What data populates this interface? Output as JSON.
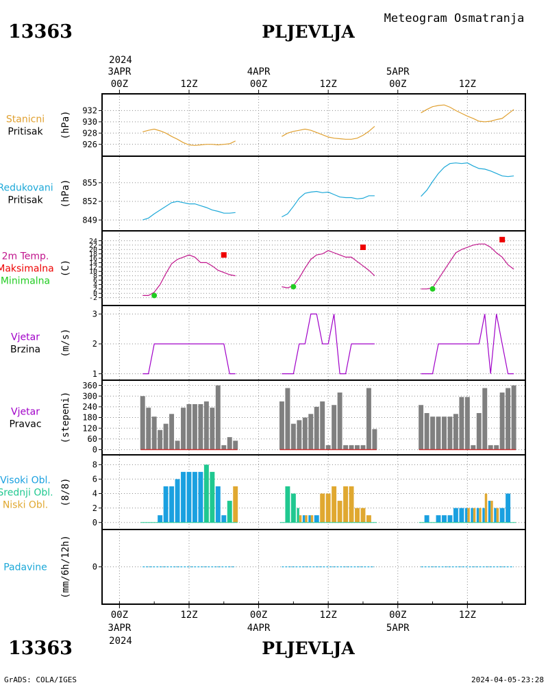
{
  "header": {
    "station_id": "13363",
    "station_name": "PLJEVLJA",
    "title": "Meteogram Osmatranja",
    "footer_left": "GrADS: COLA/IGES",
    "footer_right": "2024-04-05-23:28"
  },
  "time_axis": {
    "top_year": "2024",
    "bottom_year": "2024",
    "labels": [
      {
        "date": "3APR",
        "hour": "00Z",
        "t": 0
      },
      {
        "date": "",
        "hour": "12Z",
        "t": 12
      },
      {
        "date": "4APR",
        "hour": "00Z",
        "t": 24
      },
      {
        "date": "",
        "hour": "12Z",
        "t": 36
      },
      {
        "date": "5APR",
        "hour": "00Z",
        "t": 48
      },
      {
        "date": "",
        "hour": "12Z",
        "t": 60
      }
    ],
    "range": [
      -3,
      70
    ]
  },
  "colors": {
    "pressure": "#e0a030",
    "reduced": "#1ca8d8",
    "temperature": "#c0148c",
    "max": "#ee0000",
    "min": "#22cc22",
    "wind": "#a000c8",
    "direction": "#808080",
    "high_cloud": "#1aa0e0",
    "mid_cloud": "#20c890",
    "low_cloud": "#e0a830",
    "precip": "#1ca8d8"
  },
  "chart_data": [
    {
      "type": "line",
      "panel": "station_pressure",
      "label_lines": [
        "Stanicni",
        "Pritisak"
      ],
      "unit": "(hPa)",
      "ylim": [
        924.5,
        934
      ],
      "yticks": [
        926,
        928,
        930,
        932
      ],
      "series": [
        {
          "x": [
            4,
            5,
            6,
            7,
            8,
            9,
            10,
            11,
            12,
            13,
            14,
            15,
            16,
            17,
            18,
            19,
            20
          ],
          "y": [
            928.2,
            928.5,
            928.7,
            928.4,
            928.0,
            927.4,
            926.9,
            926.3,
            925.9,
            925.8,
            925.9,
            926.0,
            926.0,
            925.9,
            926.0,
            926.1,
            926.6
          ]
        },
        {
          "x": [
            28,
            29,
            30,
            31,
            32,
            33,
            34,
            35,
            36,
            37,
            38,
            39,
            40,
            41,
            42,
            43,
            44
          ],
          "y": [
            927.4,
            928.0,
            928.3,
            928.5,
            928.7,
            928.5,
            928.1,
            927.7,
            927.3,
            927.1,
            927.0,
            926.9,
            926.9,
            927.1,
            927.6,
            928.3,
            929.2
          ]
        },
        {
          "x": [
            52,
            53,
            54,
            55,
            56,
            57,
            58,
            59,
            60,
            61,
            62,
            63,
            64,
            65,
            66,
            67,
            68
          ],
          "y": [
            931.6,
            932.2,
            932.7,
            932.9,
            933.0,
            932.6,
            932.0,
            931.5,
            931.0,
            930.6,
            930.1,
            930.0,
            930.1,
            930.4,
            930.6,
            931.4,
            932.2
          ]
        }
      ]
    },
    {
      "type": "line",
      "panel": "reduced_pressure",
      "label_lines": [
        "Redukovani",
        "Pritisak"
      ],
      "unit": "(hPa)",
      "ylim": [
        847.8,
        858.4
      ],
      "yticks": [
        849,
        852,
        855
      ],
      "series": [
        {
          "x": [
            4,
            5,
            6,
            7,
            8,
            9,
            10,
            11,
            12,
            13,
            14,
            15,
            16,
            17,
            18,
            19,
            20
          ],
          "y": [
            849.0,
            849.3,
            850.0,
            850.6,
            851.2,
            851.8,
            852.0,
            851.8,
            851.6,
            851.6,
            851.3,
            851.0,
            850.6,
            850.4,
            850.1,
            850.1,
            850.2
          ]
        },
        {
          "x": [
            28,
            29,
            30,
            31,
            32,
            33,
            34,
            35,
            36,
            37,
            38,
            39,
            40,
            41,
            42,
            43,
            44
          ],
          "y": [
            849.5,
            850.0,
            851.2,
            852.5,
            853.3,
            853.5,
            853.6,
            853.4,
            853.5,
            853.1,
            852.7,
            852.6,
            852.6,
            852.4,
            852.5,
            852.9,
            852.9
          ]
        },
        {
          "x": [
            52,
            53,
            54,
            55,
            56,
            57,
            58,
            59,
            60,
            61,
            62,
            63,
            64,
            65,
            66,
            67,
            68
          ],
          "y": [
            852.8,
            853.8,
            855.2,
            856.5,
            857.5,
            858.1,
            858.2,
            858.1,
            858.2,
            857.7,
            857.3,
            857.2,
            856.9,
            856.5,
            856.1,
            856.0,
            856.1
          ]
        }
      ]
    },
    {
      "type": "line",
      "panel": "temperature",
      "label_lines": [
        "2m Temp.",
        "Maksimalna",
        "Minimalna"
      ],
      "unit": "(C)",
      "ylim": [
        -4,
        26
      ],
      "yticks": [
        -2,
        0,
        2,
        4,
        6,
        8,
        10,
        12,
        14,
        16,
        18,
        20,
        22,
        24
      ],
      "series": [
        {
          "x": [
            4,
            5,
            6,
            7,
            8,
            9,
            10,
            11,
            12,
            13,
            14,
            15,
            16,
            17,
            18,
            19,
            20
          ],
          "y": [
            -1.0,
            -1.0,
            0.5,
            4.0,
            9.0,
            13.5,
            15.5,
            16.5,
            17.5,
            16.5,
            14.0,
            14.0,
            12.5,
            10.5,
            9.5,
            8.5,
            8.0
          ]
        },
        {
          "x": [
            28,
            29,
            30,
            31,
            32,
            33,
            34,
            35,
            36,
            37,
            38,
            39,
            40,
            41,
            42,
            43,
            44
          ],
          "y": [
            3.0,
            2.5,
            3.5,
            7.0,
            11.5,
            15.5,
            17.5,
            18.0,
            19.5,
            18.5,
            17.5,
            16.5,
            16.5,
            14.5,
            12.5,
            10.5,
            8.0
          ]
        },
        {
          "x": [
            52,
            53,
            54,
            55,
            56,
            57,
            58,
            59,
            60,
            61,
            62,
            63,
            64,
            65,
            66,
            67,
            68
          ],
          "y": [
            2.0,
            2.0,
            2.5,
            6.5,
            10.5,
            14.5,
            18.5,
            20.0,
            21.0,
            22.0,
            22.5,
            22.5,
            21.0,
            18.5,
            16.5,
            13.0,
            11.0
          ]
        }
      ],
      "max_points": {
        "x": [
          18,
          42,
          66
        ],
        "y": [
          17.5,
          21.0,
          24.5
        ]
      },
      "min_points": {
        "x": [
          6,
          30,
          54
        ],
        "y": [
          -1.0,
          3.0,
          2.0
        ]
      }
    },
    {
      "type": "line",
      "panel": "wind_speed",
      "label_lines": [
        "Vjetar",
        "Brzina"
      ],
      "unit": "(m/s)",
      "ylim": [
        0.9,
        3.1
      ],
      "yticks": [
        1,
        2,
        3
      ],
      "series": [
        {
          "x": [
            4,
            5,
            6,
            7,
            8,
            9,
            10,
            11,
            12,
            13,
            14,
            15,
            16,
            17,
            18,
            19,
            20
          ],
          "y": [
            1,
            1,
            2,
            2,
            2,
            2,
            2,
            2,
            2,
            2,
            2,
            2,
            2,
            2,
            2,
            1,
            1
          ]
        },
        {
          "x": [
            28,
            29,
            30,
            31,
            32,
            33,
            34,
            35,
            36,
            37,
            38,
            39,
            40,
            41,
            42,
            43,
            44
          ],
          "y": [
            1,
            1,
            1,
            2,
            2,
            3,
            3,
            2,
            2,
            3,
            1,
            1,
            2,
            2,
            2,
            2,
            2
          ]
        },
        {
          "x": [
            52,
            53,
            54,
            55,
            56,
            57,
            58,
            59,
            60,
            61,
            62,
            63,
            64,
            65,
            66,
            67,
            68
          ],
          "y": [
            1,
            1,
            1,
            2,
            2,
            2,
            2,
            2,
            2,
            2,
            2,
            3,
            1,
            3,
            2,
            1,
            1
          ]
        }
      ]
    },
    {
      "type": "bar",
      "panel": "wind_direction",
      "label_lines": [
        "Vjetar",
        "Pravac"
      ],
      "unit": "(stepeni)",
      "ylim": [
        -10,
        370
      ],
      "yticks": [
        0,
        60,
        120,
        180,
        240,
        300,
        360
      ],
      "x": [
        4,
        5,
        6,
        7,
        8,
        9,
        10,
        11,
        12,
        13,
        14,
        15,
        16,
        17,
        18,
        19,
        20,
        28,
        29,
        30,
        31,
        32,
        33,
        34,
        35,
        36,
        37,
        38,
        39,
        40,
        41,
        42,
        43,
        44,
        52,
        53,
        54,
        55,
        56,
        57,
        58,
        59,
        60,
        61,
        62,
        63,
        64,
        65,
        66,
        67,
        68
      ],
      "values": [
        300,
        235,
        185,
        110,
        145,
        200,
        50,
        235,
        255,
        255,
        255,
        270,
        235,
        360,
        25,
        70,
        50,
        270,
        345,
        145,
        165,
        180,
        200,
        240,
        270,
        25,
        250,
        320,
        25,
        25,
        25,
        25,
        345,
        115,
        250,
        205,
        185,
        185,
        185,
        185,
        200,
        295,
        295,
        25,
        205,
        345,
        25,
        25,
        320,
        345,
        360
      ]
    },
    {
      "type": "bar",
      "panel": "cloud_cover",
      "label_lines": [
        "Visoki Obl.",
        "Srednji Obl.",
        "Niski Obl."
      ],
      "unit": "(8/8)",
      "ylim": [
        -0.5,
        8.6
      ],
      "yticks": [
        0,
        2,
        4,
        6,
        8
      ],
      "x": [
        4,
        5,
        6,
        7,
        8,
        9,
        10,
        11,
        12,
        13,
        14,
        15,
        16,
        17,
        18,
        19,
        20,
        28,
        29,
        30,
        31,
        32,
        33,
        34,
        35,
        36,
        37,
        38,
        39,
        40,
        41,
        42,
        43,
        44,
        52,
        53,
        54,
        55,
        56,
        57,
        58,
        59,
        60,
        61,
        62,
        63,
        64,
        65,
        66,
        67,
        68
      ],
      "series": [
        {
          "name": "Visoki Obl.",
          "values": [
            0,
            0,
            0,
            1,
            5,
            5,
            6,
            7,
            7,
            7,
            7,
            0,
            0,
            5,
            1,
            0,
            0,
            0,
            0,
            0,
            0,
            1,
            1,
            1,
            0,
            0,
            0,
            0,
            0,
            0,
            0,
            0,
            0,
            0,
            0,
            1,
            0,
            1,
            1,
            1,
            2,
            2,
            2,
            2,
            2,
            2,
            3,
            2,
            2,
            4,
            0
          ]
        },
        {
          "name": "Srednji Obl.",
          "values": [
            0,
            0,
            0,
            0,
            0,
            0,
            0,
            0,
            0,
            0,
            0,
            8,
            7,
            0,
            0,
            3,
            0,
            0,
            5,
            4,
            2,
            0,
            0,
            0,
            0,
            0,
            0,
            0,
            0,
            0,
            0,
            0,
            0,
            0,
            0,
            0,
            0,
            0,
            0,
            0,
            0,
            0,
            0,
            0,
            0,
            0,
            0,
            0,
            0,
            0,
            0
          ]
        },
        {
          "name": "Niski Obl.",
          "values": [
            0,
            0,
            0,
            0,
            0,
            0,
            0,
            0,
            0,
            0,
            0,
            0,
            0,
            0,
            0,
            0,
            5,
            0,
            0,
            0,
            1,
            1,
            1,
            0,
            4,
            4,
            5,
            3,
            5,
            5,
            2,
            2,
            1,
            0,
            0,
            0,
            0,
            0,
            0,
            0,
            0,
            0,
            2,
            2,
            2,
            4,
            3,
            2,
            0,
            0,
            0
          ]
        }
      ]
    },
    {
      "type": "line",
      "panel": "precipitation",
      "label_lines": [
        "Padavine"
      ],
      "unit": "(mm/6h/12h)",
      "ylim": [
        -1,
        1
      ],
      "yticks": [
        0
      ],
      "series": [
        {
          "x": [
            4,
            20
          ],
          "y": [
            0,
            0
          ]
        },
        {
          "x": [
            28,
            44
          ],
          "y": [
            0,
            0
          ]
        },
        {
          "x": [
            52,
            68
          ],
          "y": [
            0,
            0
          ]
        }
      ]
    }
  ]
}
